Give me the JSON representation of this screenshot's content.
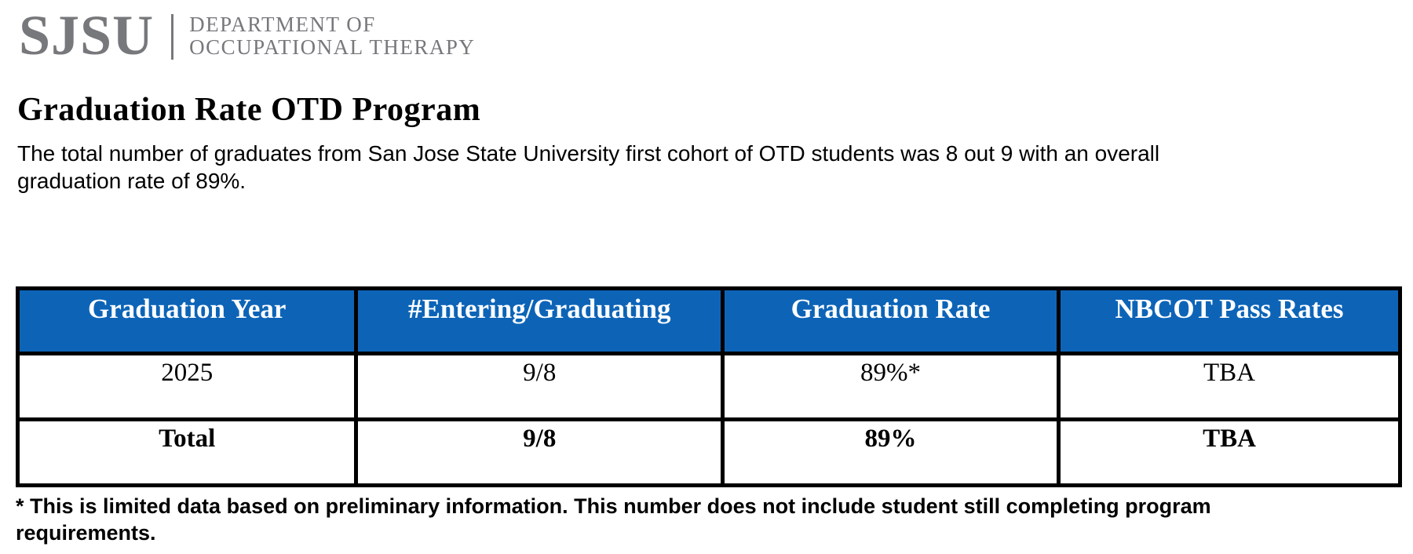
{
  "logo": {
    "acronym": "SJSU",
    "dept_line1": "DEPARTMENT OF",
    "dept_line2": "OCCUPATIONAL THERAPY"
  },
  "heading": {
    "title": "Graduation Rate OTD Program"
  },
  "intro": {
    "text": "The total number of graduates from San Jose State University first cohort of OTD students was 8 out 9 with an overall graduation rate of 89%."
  },
  "table": {
    "headers": [
      "Graduation Year",
      "#Entering/Graduating",
      "Graduation Rate",
      "NBCOT Pass Rates"
    ],
    "rows": [
      {
        "cells": [
          "2025",
          "9/8",
          "89%*",
          "TBA"
        ]
      },
      {
        "cells": [
          "Total",
          "9/8",
          "89%",
          "TBA"
        ]
      }
    ]
  },
  "footnote": {
    "text": "* This is limited data based on preliminary information. This number does not include student still completing program requirements."
  },
  "colors": {
    "header_bg": "#0d64b7",
    "header_text": "#ffffff",
    "border": "#000000",
    "logo_gray": "#77787b",
    "text": "#000000",
    "background": "#ffffff"
  }
}
